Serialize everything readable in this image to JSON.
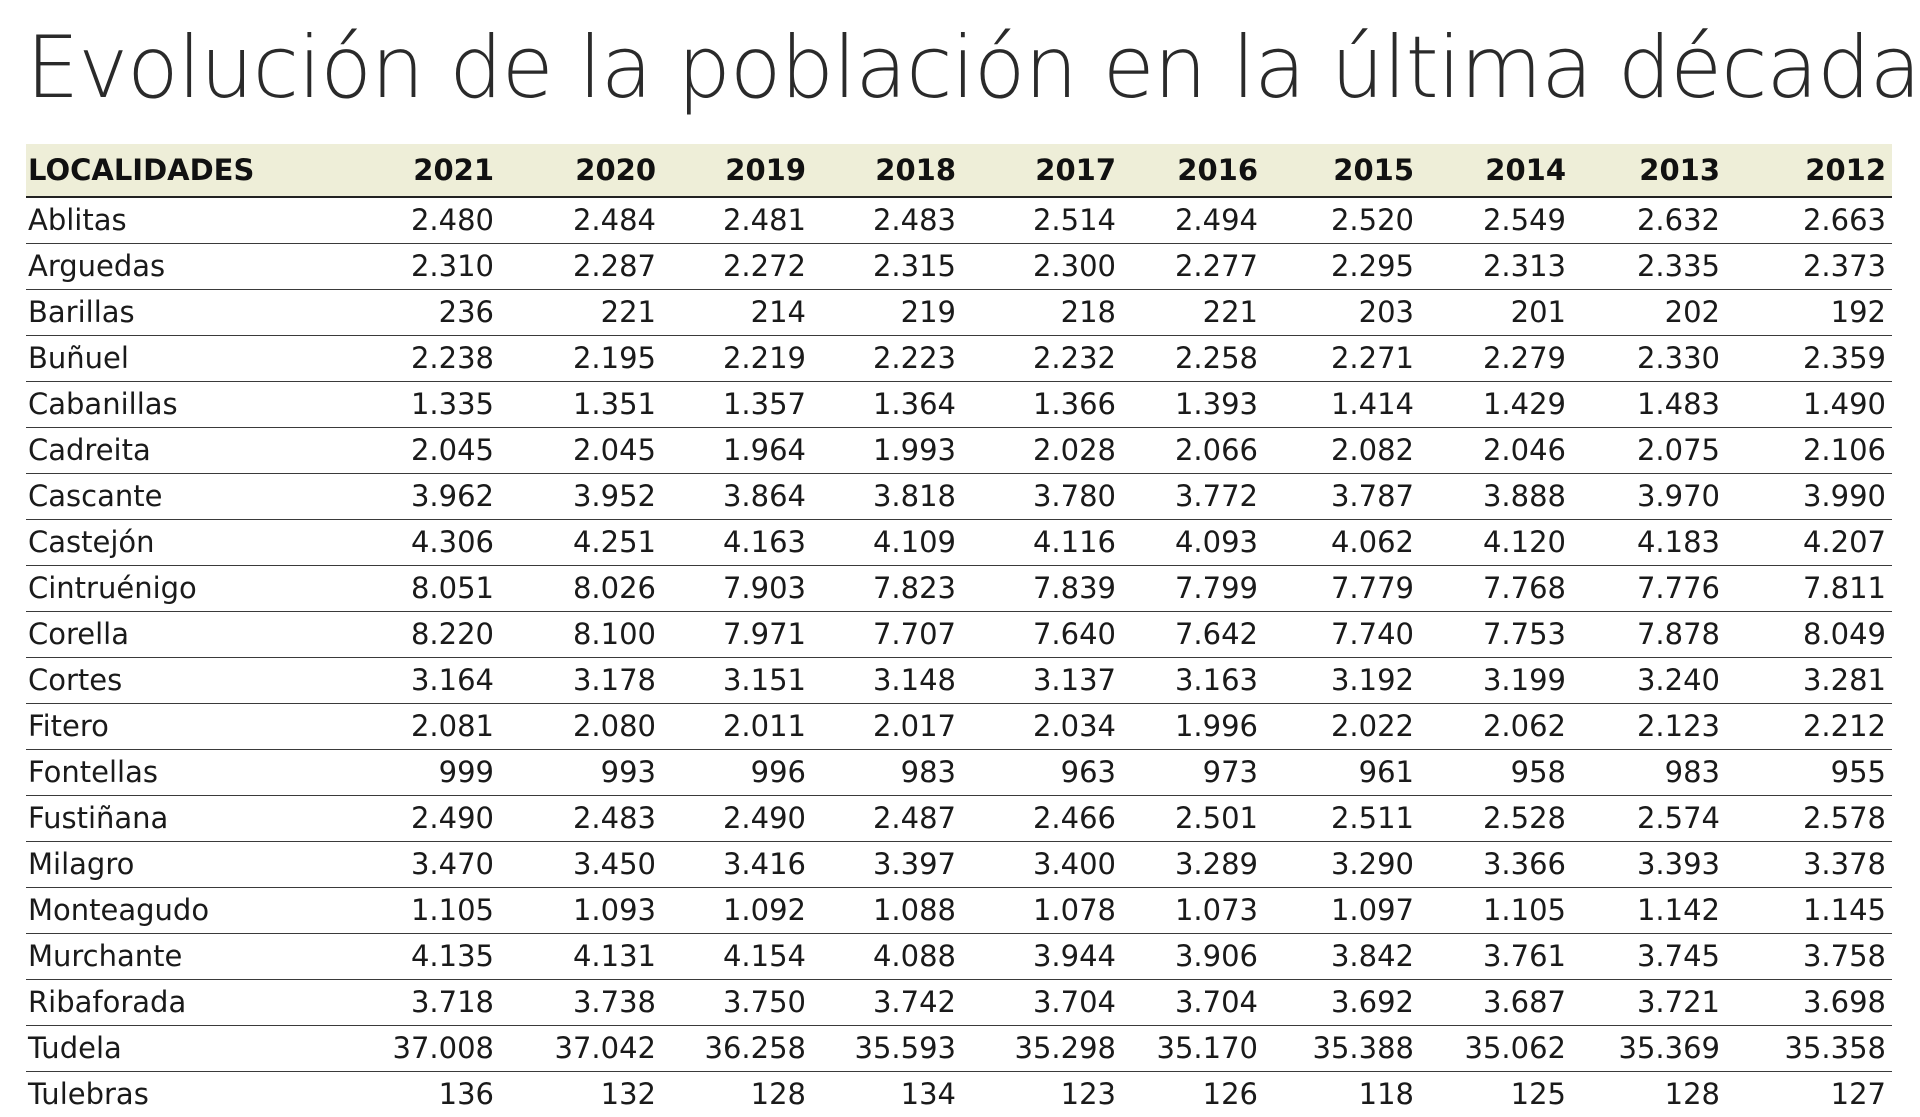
{
  "title": "Evolución de la población en la última década",
  "chart_data": {
    "type": "table",
    "title": "Evolución de la población en la última década",
    "columns": [
      "LOCALIDADES",
      "2021",
      "2020",
      "2019",
      "2018",
      "2017",
      "2016",
      "2015",
      "2014",
      "2013",
      "2012"
    ],
    "rows": [
      [
        "Ablitas",
        "2.480",
        "2.484",
        "2.481",
        "2.483",
        "2.514",
        "2.494",
        "2.520",
        "2.549",
        "2.632",
        "2.663"
      ],
      [
        "Arguedas",
        "2.310",
        "2.287",
        "2.272",
        "2.315",
        "2.300",
        "2.277",
        "2.295",
        "2.313",
        "2.335",
        "2.373"
      ],
      [
        "Barillas",
        "236",
        "221",
        "214",
        "219",
        "218",
        "221",
        "203",
        "201",
        "202",
        "192"
      ],
      [
        "Buñuel",
        "2.238",
        "2.195",
        "2.219",
        "2.223",
        "2.232",
        "2.258",
        "2.271",
        "2.279",
        "2.330",
        "2.359"
      ],
      [
        "Cabanillas",
        "1.335",
        "1.351",
        "1.357",
        "1.364",
        "1.366",
        "1.393",
        "1.414",
        "1.429",
        "1.483",
        "1.490"
      ],
      [
        "Cadreita",
        "2.045",
        "2.045",
        "1.964",
        "1.993",
        "2.028",
        "2.066",
        "2.082",
        "2.046",
        "2.075",
        "2.106"
      ],
      [
        "Cascante",
        "3.962",
        "3.952",
        "3.864",
        "3.818",
        "3.780",
        "3.772",
        "3.787",
        "3.888",
        "3.970",
        "3.990"
      ],
      [
        "Castejón",
        "4.306",
        "4.251",
        "4.163",
        "4.109",
        "4.116",
        "4.093",
        "4.062",
        "4.120",
        "4.183",
        "4.207"
      ],
      [
        "Cintruénigo",
        "8.051",
        "8.026",
        "7.903",
        "7.823",
        "7.839",
        "7.799",
        "7.779",
        "7.768",
        "7.776",
        "7.811"
      ],
      [
        "Corella",
        "8.220",
        "8.100",
        "7.971",
        "7.707",
        "7.640",
        "7.642",
        "7.740",
        "7.753",
        "7.878",
        "8.049"
      ],
      [
        "Cortes",
        "3.164",
        "3.178",
        "3.151",
        "3.148",
        "3.137",
        "3.163",
        "3.192",
        "3.199",
        "3.240",
        "3.281"
      ],
      [
        "Fitero",
        "2.081",
        "2.080",
        "2.011",
        "2.017",
        "2.034",
        "1.996",
        "2.022",
        "2.062",
        "2.123",
        "2.212"
      ],
      [
        "Fontellas",
        "999",
        "993",
        "996",
        "983",
        "963",
        "973",
        "961",
        "958",
        "983",
        "955"
      ],
      [
        "Fustiñana",
        "2.490",
        "2.483",
        "2.490",
        "2.487",
        "2.466",
        "2.501",
        "2.511",
        "2.528",
        "2.574",
        "2.578"
      ],
      [
        "Milagro",
        "3.470",
        "3.450",
        "3.416",
        "3.397",
        "3.400",
        "3.289",
        "3.290",
        "3.366",
        "3.393",
        "3.378"
      ],
      [
        "Monteagudo",
        "1.105",
        "1.093",
        "1.092",
        "1.088",
        "1.078",
        "1.073",
        "1.097",
        "1.105",
        "1.142",
        "1.145"
      ],
      [
        "Murchante",
        "4.135",
        "4.131",
        "4.154",
        "4.088",
        "3.944",
        "3.906",
        "3.842",
        "3.761",
        "3.745",
        "3.758"
      ],
      [
        "Ribaforada",
        "3.718",
        "3.738",
        "3.750",
        "3.742",
        "3.704",
        "3.704",
        "3.692",
        "3.687",
        "3.721",
        "3.698"
      ],
      [
        "Tudela",
        "37.008",
        "37.042",
        "36.258",
        "35.593",
        "35.298",
        "35.170",
        "35.388",
        "35.062",
        "35.369",
        "35.358"
      ],
      [
        "Tulebras",
        "136",
        "132",
        "128",
        "134",
        "123",
        "126",
        "118",
        "125",
        "128",
        "127"
      ]
    ],
    "header_background": "#eeeed8",
    "text_color": "#1a1a1a"
  }
}
